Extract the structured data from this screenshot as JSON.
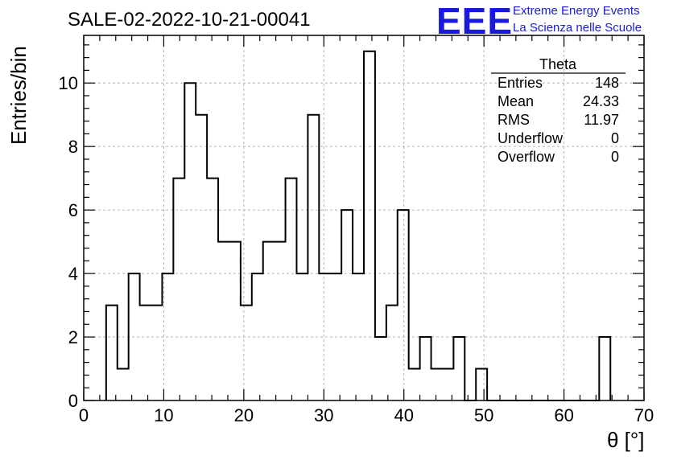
{
  "chart_data": {
    "type": "bar",
    "title": "SALE-02-2022-10-21-00041",
    "xlabel": "θ [°]",
    "ylabel": "Entries/bin",
    "xlim": [
      0,
      70
    ],
    "ylim": [
      0,
      11.5
    ],
    "grid": true,
    "bin_width": 1.4,
    "bin_edges_start": 2.8,
    "values": [
      3,
      1,
      4,
      3,
      3,
      4,
      7,
      10,
      9,
      7,
      5,
      5,
      3,
      4,
      5,
      5,
      7,
      4,
      9,
      4,
      4,
      6,
      4,
      11,
      2,
      3,
      6,
      1,
      2,
      1,
      1,
      2,
      0,
      1,
      0,
      0,
      0,
      0,
      0,
      0,
      0,
      0,
      0,
      0,
      2
    ],
    "x_ticks": [
      "0",
      "10",
      "20",
      "30",
      "40",
      "50",
      "60",
      "70"
    ],
    "y_ticks": [
      "0",
      "2",
      "4",
      "6",
      "8",
      "10"
    ],
    "stats": {
      "name": "Theta",
      "rows": [
        {
          "label": "Entries",
          "value": "148"
        },
        {
          "label": "Mean",
          "value": "24.33"
        },
        {
          "label": "RMS",
          "value": "11.97"
        },
        {
          "label": "Underflow",
          "value": "0"
        },
        {
          "label": "Overflow",
          "value": "0"
        }
      ]
    }
  },
  "logo": {
    "mark": "EEE",
    "line1": "Extreme Energy Events",
    "line2": "La Scienza nelle Scuole",
    "color": "#1a1adb"
  }
}
